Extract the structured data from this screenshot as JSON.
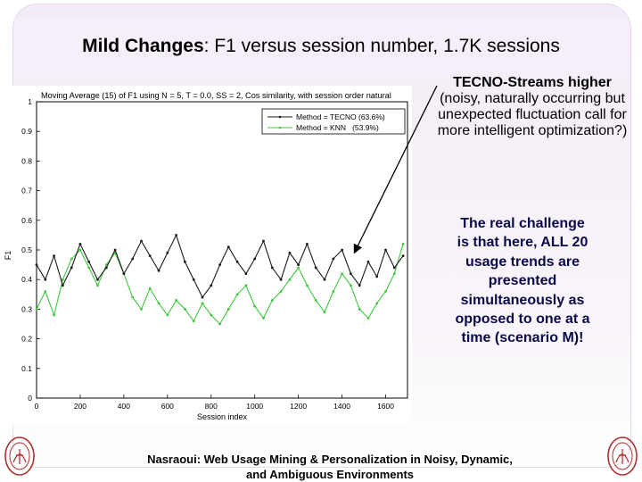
{
  "slide": {
    "title_bold": "Mild Changes",
    "title_rest": ": F1 versus session number, 1.7K sessions",
    "note_top_bold": "TECNO-Streams higher",
    "note_top_rest": "(noisy, naturally occurring but unexpected fluctuation call for more intelligent optimization?)",
    "note_mid": "The real challenge is that here, ALL 20 usage trends are presented simultaneously as opposed to one at a time (scenario M)!",
    "footer_line1": "Nasraoui: Web Usage Mining & Personalization in Noisy, Dynamic,",
    "footer_line2": "and Ambiguous Environments"
  },
  "colors": {
    "tecno": "#1a1a1a",
    "knn": "#3ec83e",
    "arrow": "#000000",
    "note_mid_text": "#0a0a4a",
    "seal": "#b03030"
  },
  "icons": {
    "seal": "university-seal"
  },
  "chart_data": {
    "type": "line",
    "title": "Moving Average (15) of F1 using N = 5, T = 0.0, SS = 2, Cos similarity, with session order natural",
    "xlabel": "Session index",
    "ylabel": "F1",
    "xlim": [
      0,
      1700
    ],
    "ylim": [
      0,
      1
    ],
    "xticks": [
      "0",
      "200",
      "400",
      "600",
      "800",
      "1000",
      "1200",
      "1400",
      "1600"
    ],
    "yticks": [
      "0",
      "0.1",
      "0.2",
      "0.3",
      "0.4",
      "0.5",
      "0.6",
      "0.7",
      "0.8",
      "0.9",
      "1"
    ],
    "grid": false,
    "legend_position": "top-right",
    "series": [
      {
        "name": "Method = TECNO (63.6%)",
        "x": [
          0,
          40,
          80,
          120,
          160,
          200,
          240,
          280,
          320,
          360,
          400,
          440,
          480,
          520,
          560,
          600,
          640,
          680,
          720,
          760,
          800,
          840,
          880,
          920,
          960,
          1000,
          1040,
          1080,
          1120,
          1160,
          1200,
          1240,
          1280,
          1320,
          1360,
          1400,
          1440,
          1480,
          1520,
          1560,
          1600,
          1640,
          1680
        ],
        "y": [
          0.45,
          0.4,
          0.48,
          0.38,
          0.44,
          0.52,
          0.46,
          0.4,
          0.44,
          0.5,
          0.42,
          0.47,
          0.53,
          0.48,
          0.43,
          0.49,
          0.55,
          0.46,
          0.4,
          0.34,
          0.38,
          0.45,
          0.51,
          0.46,
          0.42,
          0.47,
          0.53,
          0.44,
          0.4,
          0.49,
          0.45,
          0.52,
          0.44,
          0.4,
          0.47,
          0.5,
          0.42,
          0.38,
          0.46,
          0.41,
          0.5,
          0.44,
          0.48
        ]
      },
      {
        "name": "Method = KNN   (53.9%)",
        "x": [
          0,
          40,
          80,
          120,
          160,
          200,
          240,
          280,
          320,
          360,
          400,
          440,
          480,
          520,
          560,
          600,
          640,
          680,
          720,
          760,
          800,
          840,
          880,
          920,
          960,
          1000,
          1040,
          1080,
          1120,
          1160,
          1200,
          1240,
          1280,
          1320,
          1360,
          1400,
          1440,
          1480,
          1520,
          1560,
          1600,
          1640,
          1680
        ],
        "y": [
          0.3,
          0.36,
          0.28,
          0.4,
          0.47,
          0.5,
          0.44,
          0.38,
          0.45,
          0.49,
          0.42,
          0.34,
          0.3,
          0.37,
          0.32,
          0.28,
          0.33,
          0.3,
          0.26,
          0.32,
          0.28,
          0.25,
          0.3,
          0.35,
          0.38,
          0.31,
          0.27,
          0.33,
          0.36,
          0.4,
          0.44,
          0.38,
          0.33,
          0.29,
          0.36,
          0.42,
          0.38,
          0.3,
          0.27,
          0.32,
          0.36,
          0.42,
          0.52
        ]
      }
    ]
  }
}
